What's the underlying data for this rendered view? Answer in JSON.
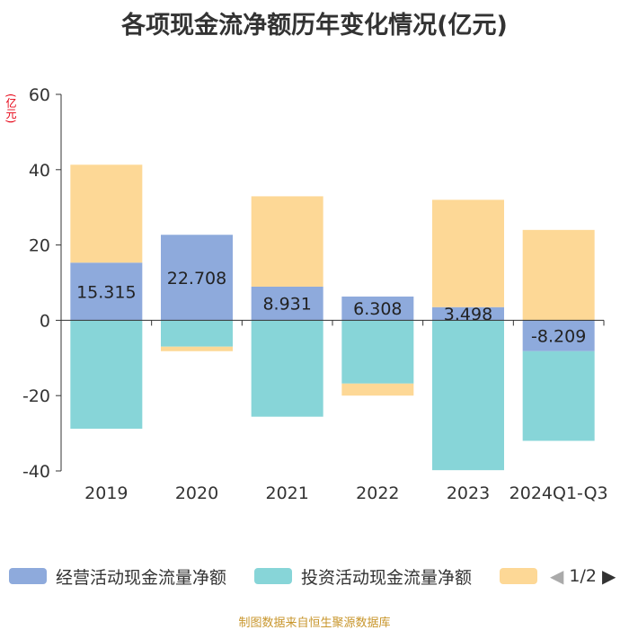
{
  "title": "各项现金流净额历年变化情况(亿元)",
  "unit_label": "(亿元)",
  "source": "制图数据来自恒生聚源数据库",
  "legend": {
    "items": [
      {
        "label": "经营活动现金流量净额",
        "color": "#8eaadc"
      },
      {
        "label": "投资活动现金流量净额",
        "color": "#87d5d8"
      },
      {
        "label": "",
        "color": "#fdd896"
      }
    ],
    "pager": {
      "prev_arrow": "◀",
      "text": "1/2",
      "next_arrow": "▶",
      "prev_color": "#aaaaaa",
      "next_color": "#333333"
    }
  },
  "chart_data": {
    "type": "bar",
    "stacked": true,
    "title": "各项现金流净额历年变化情况(亿元)",
    "ylabel": "(亿元)",
    "ylim": [
      -40,
      60
    ],
    "yticks": [
      60,
      40,
      20,
      0,
      -20,
      -40
    ],
    "ytick_labels": [
      "60",
      "40",
      "20",
      "0",
      "-20",
      "-40"
    ],
    "categories": [
      "2019",
      "2020",
      "2021",
      "2022",
      "2023",
      "2024Q1-Q3"
    ],
    "series": [
      {
        "name": "经营活动现金流量净额",
        "color": "#8eaadc",
        "values": [
          15.315,
          22.708,
          8.931,
          6.308,
          3.498,
          -8.209
        ],
        "labels": [
          "15.315",
          "22.708",
          "8.931",
          "6.308",
          "3.498",
          "-8.209"
        ]
      },
      {
        "name": "投资活动现金流量净额",
        "color": "#87d5d8",
        "values": [
          -28.8,
          -7.0,
          -25.6,
          -16.8,
          -39.8,
          -23.8
        ]
      },
      {
        "name": "",
        "color": "#fdd896",
        "values": [
          26.0,
          -1.2,
          24.0,
          -3.2,
          28.5,
          24.0
        ]
      }
    ],
    "grid": false,
    "legend_position": "bottom"
  }
}
